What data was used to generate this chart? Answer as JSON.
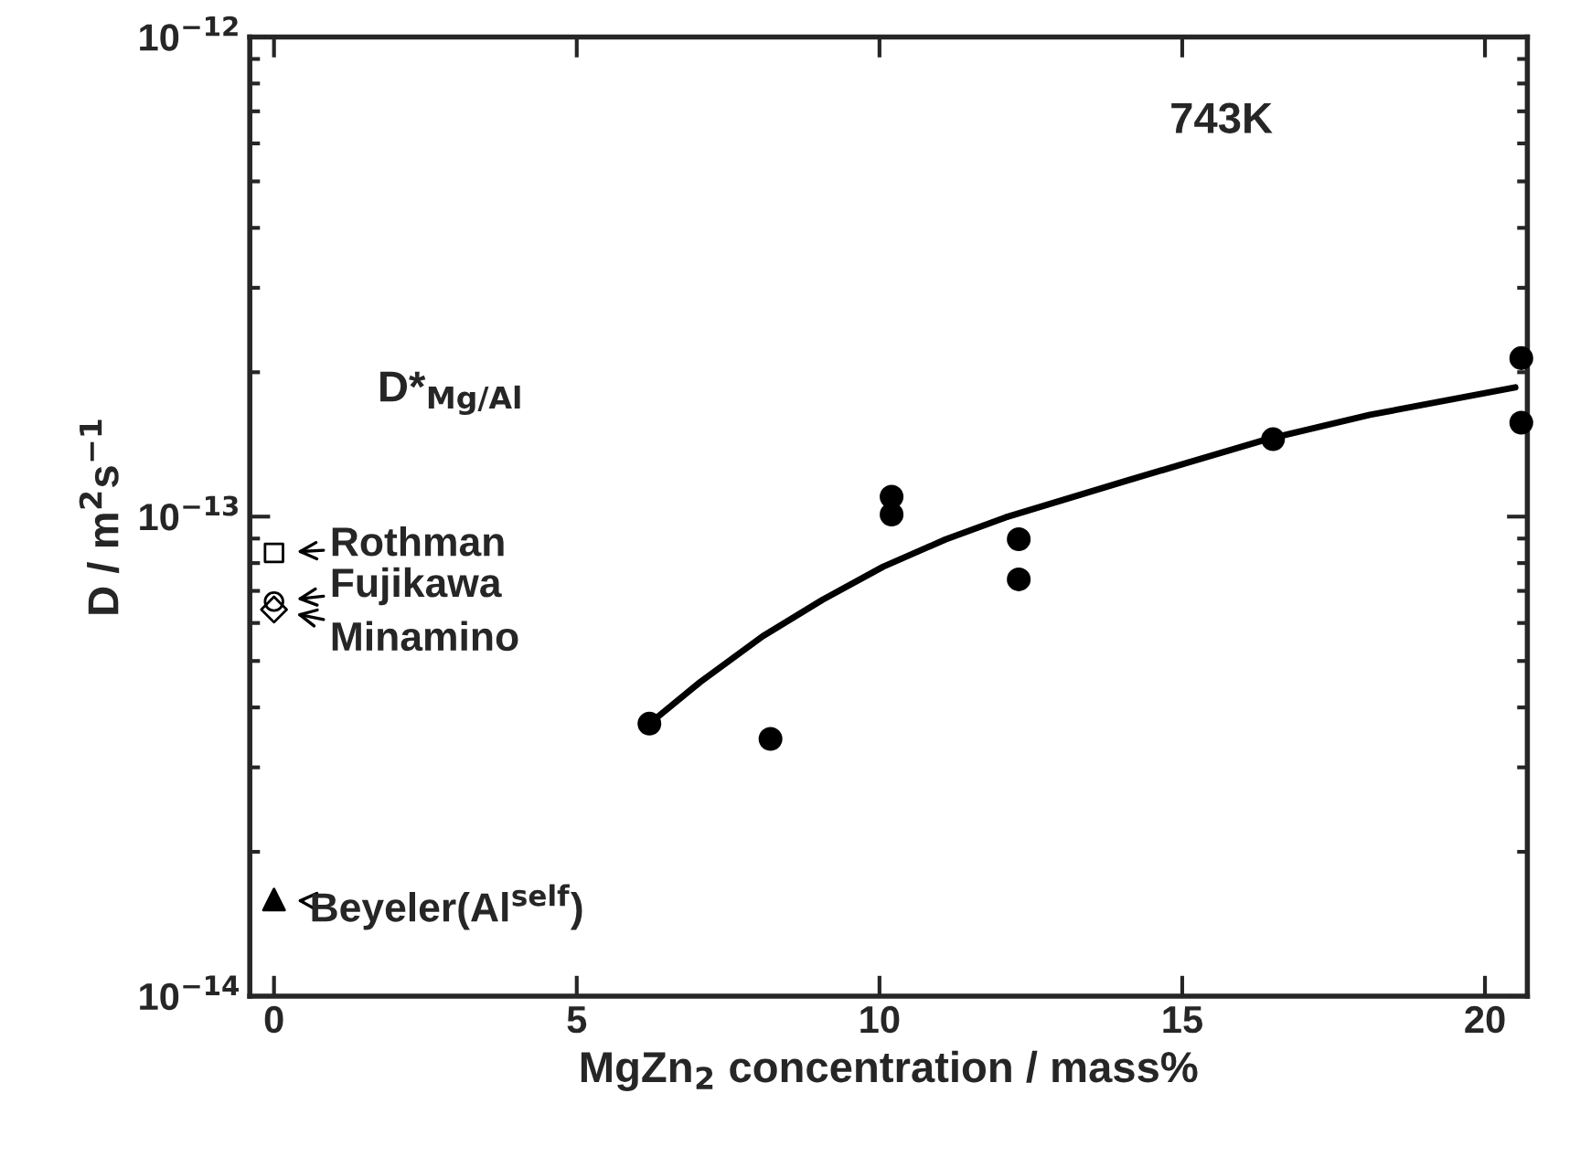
{
  "chart_data": {
    "type": "scatter",
    "xlabel": "MgZn$_{2}$ concentration / mass%",
    "ylabel": "D / m$^{2}$s$^{−1}$",
    "xlim": [
      -0.4,
      20.7
    ],
    "xticks": [
      0,
      5,
      10,
      15,
      20
    ],
    "ylim": [
      1e-14,
      1e-12
    ],
    "log": true,
    "yticks": [
      {
        "value": 1e-14,
        "label": "10$^{−14}$"
      },
      {
        "value": 1e-13,
        "label": "10$^{−13}$"
      },
      {
        "value": 1e-12,
        "label": "10$^{−12}$"
      }
    ],
    "grid": false,
    "legend": "left",
    "annotations": [
      "743K",
      "D*$_{Mg/Al}$"
    ],
    "series": [
      {
        "color": "#000000",
        "marker": "circle",
        "x": [
          6.2,
          8.2,
          10.2,
          10.2,
          12.3,
          12.3,
          16.5,
          20.6,
          20.6
        ],
        "values": [
          3.7e-14,
          3.44e-14,
          1.1e-13,
          1.01e-13,
          8.97e-14,
          7.4e-14,
          1.45e-13,
          2.14e-13,
          1.57e-13
        ]
      },
      {
        "type": "line",
        "color": "#000000",
        "marker": "none",
        "line_style": "solid",
        "x": [
          6.2,
          7.04,
          8.07,
          9.06,
          10.06,
          11.09,
          12.08,
          14.1,
          16.4,
          18.1,
          20.5
        ],
        "values": [
          3.7e-14,
          4.52e-14,
          5.63e-14,
          6.71e-14,
          7.86e-14,
          8.96e-14,
          9.96e-14,
          1.19e-13,
          1.45e-13,
          1.63e-13,
          1.86e-13
        ]
      },
      {
        "name": "Rothman",
        "color": "#000000",
        "marker": "square",
        "x": [
          0
        ],
        "values": [
          8.4e-14
        ]
      },
      {
        "name": "Fujikawa",
        "color": "#000000",
        "marker": "circle",
        "x": [
          0
        ],
        "values": [
          6.65e-14
        ]
      },
      {
        "name": "Minamino",
        "color": "#000000",
        "marker": "diamond",
        "x": [
          0
        ],
        "values": [
          6.4e-14
        ]
      },
      {
        "name": "Beyeler(Al$^{self}$)",
        "color": "#000000",
        "marker": "triangle",
        "x": [
          0
        ],
        "values": [
          1.59e-14
        ]
      }
    ]
  }
}
